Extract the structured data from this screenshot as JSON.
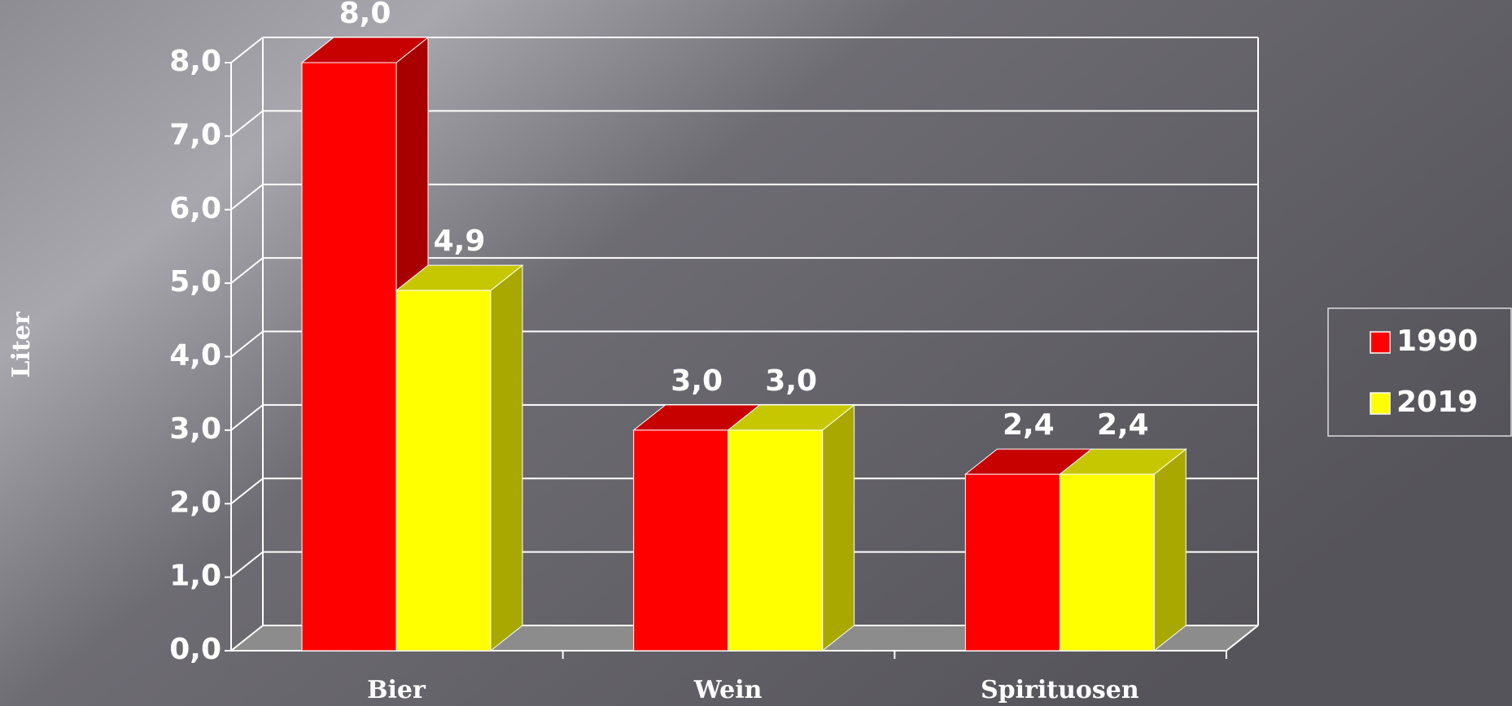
{
  "chart_data": {
    "type": "bar3d",
    "categories": [
      "Bier",
      "Wein",
      "Spirituosen"
    ],
    "series": [
      {
        "name": "1990",
        "color": "#ff0000",
        "values": [
          8.0,
          3.0,
          2.4
        ],
        "value_labels": [
          "8,0",
          "3,0",
          "2,4"
        ]
      },
      {
        "name": "2019",
        "color": "#ffff00",
        "values": [
          4.9,
          3.0,
          2.4
        ],
        "value_labels": [
          "4,9",
          "3,0",
          "2,4"
        ]
      }
    ],
    "ylabel": "Liter",
    "ylim": [
      0,
      8
    ],
    "yticks": [
      {
        "value": 0,
        "label": "0,0"
      },
      {
        "value": 1,
        "label": "1,0"
      },
      {
        "value": 2,
        "label": "2,0"
      },
      {
        "value": 3,
        "label": "3,0"
      },
      {
        "value": 4,
        "label": "4,0"
      },
      {
        "value": 5,
        "label": "5,0"
      },
      {
        "value": 6,
        "label": "6,0"
      },
      {
        "value": 7,
        "label": "7,0"
      },
      {
        "value": 8,
        "label": "8,0"
      }
    ],
    "grid": true,
    "legend": "right"
  }
}
